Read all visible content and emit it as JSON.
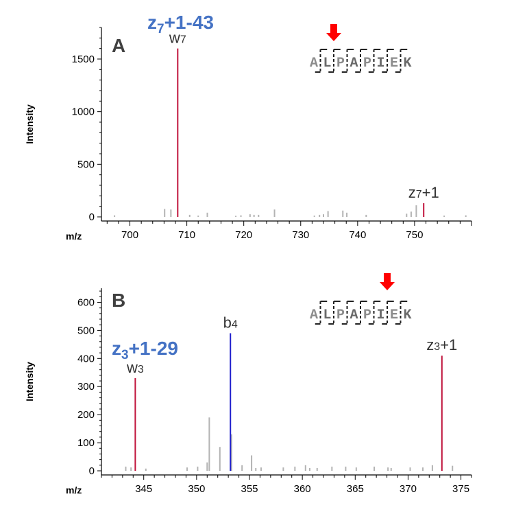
{
  "chart_data": [
    {
      "type": "bar",
      "panel": "A",
      "xlabel": "m/z",
      "ylabel": "Intensity",
      "xlim": [
        695,
        760
      ],
      "ylim": [
        0,
        1800
      ],
      "xticks": [
        700,
        710,
        720,
        730,
        740,
        750
      ],
      "yticks": [
        0,
        500,
        1000,
        1500
      ],
      "fragment_title": {
        "base": "z",
        "sub": "7",
        "rest": "+1-43"
      },
      "sequence": [
        "A",
        "L",
        "P",
        "A",
        "P",
        "I",
        "E",
        "K"
      ],
      "arrow_between": [
        1,
        2
      ],
      "labeled_peaks": [
        {
          "label": "w",
          "sub": "7",
          "mz": 708.4,
          "intensity": 1600,
          "color": "#c0143c"
        },
        {
          "label": "z",
          "sub": "7",
          "suffix": "+1",
          "mz": 751.6,
          "intensity": 130,
          "color": "#c0143c"
        }
      ],
      "noise_peaks": [
        {
          "mz": 697.3,
          "intensity": 15
        },
        {
          "mz": 706.1,
          "intensity": 75
        },
        {
          "mz": 707.2,
          "intensity": 70
        },
        {
          "mz": 710.5,
          "intensity": 20
        },
        {
          "mz": 712.0,
          "intensity": 12
        },
        {
          "mz": 713.6,
          "intensity": 40
        },
        {
          "mz": 718.6,
          "intensity": 10
        },
        {
          "mz": 719.5,
          "intensity": 15
        },
        {
          "mz": 721.1,
          "intensity": 25
        },
        {
          "mz": 721.8,
          "intensity": 20
        },
        {
          "mz": 722.6,
          "intensity": 20
        },
        {
          "mz": 725.4,
          "intensity": 70
        },
        {
          "mz": 732.4,
          "intensity": 12
        },
        {
          "mz": 733.3,
          "intensity": 20
        },
        {
          "mz": 734.0,
          "intensity": 25
        },
        {
          "mz": 734.8,
          "intensity": 55
        },
        {
          "mz": 737.4,
          "intensity": 60
        },
        {
          "mz": 738.1,
          "intensity": 40
        },
        {
          "mz": 741.5,
          "intensity": 20
        },
        {
          "mz": 748.6,
          "intensity": 30
        },
        {
          "mz": 749.4,
          "intensity": 50
        },
        {
          "mz": 750.3,
          "intensity": 110
        },
        {
          "mz": 755.2,
          "intensity": 12
        },
        {
          "mz": 759.0,
          "intensity": 15
        }
      ]
    },
    {
      "type": "bar",
      "panel": "B",
      "xlabel": "m/z",
      "ylabel": "Intensity",
      "xlim": [
        341,
        376
      ],
      "ylim": [
        0,
        650
      ],
      "xticks": [
        345,
        350,
        355,
        360,
        365,
        370,
        375
      ],
      "yticks": [
        0,
        100,
        200,
        300,
        400,
        500,
        600
      ],
      "fragment_title": {
        "base": "z",
        "sub": "3",
        "rest": "+1-29"
      },
      "sequence": [
        "A",
        "L",
        "P",
        "A",
        "P",
        "I",
        "E",
        "K"
      ],
      "arrow_between": [
        5,
        6
      ],
      "labeled_peaks": [
        {
          "label": "w",
          "sub": "3",
          "mz": 344.2,
          "intensity": 330,
          "color": "#c0143c"
        },
        {
          "label": "b",
          "sub": "4",
          "mz": 353.2,
          "intensity": 490,
          "color": "#1f1fcc"
        },
        {
          "label": "z",
          "sub": "3",
          "suffix": "+1",
          "mz": 373.2,
          "intensity": 410,
          "color": "#c0143c"
        }
      ],
      "noise_peaks": [
        {
          "mz": 343.3,
          "intensity": 15
        },
        {
          "mz": 343.8,
          "intensity": 12
        },
        {
          "mz": 345.2,
          "intensity": 8
        },
        {
          "mz": 349.1,
          "intensity": 12
        },
        {
          "mz": 350.1,
          "intensity": 15
        },
        {
          "mz": 351.0,
          "intensity": 30
        },
        {
          "mz": 351.2,
          "intensity": 190
        },
        {
          "mz": 352.2,
          "intensity": 85
        },
        {
          "mz": 353.3,
          "intensity": 130
        },
        {
          "mz": 354.3,
          "intensity": 20
        },
        {
          "mz": 355.2,
          "intensity": 55
        },
        {
          "mz": 355.6,
          "intensity": 10
        },
        {
          "mz": 356.1,
          "intensity": 12
        },
        {
          "mz": 358.2,
          "intensity": 12
        },
        {
          "mz": 359.3,
          "intensity": 15
        },
        {
          "mz": 360.3,
          "intensity": 20
        },
        {
          "mz": 360.7,
          "intensity": 10
        },
        {
          "mz": 361.4,
          "intensity": 10
        },
        {
          "mz": 362.8,
          "intensity": 15
        },
        {
          "mz": 364.1,
          "intensity": 15
        },
        {
          "mz": 365.1,
          "intensity": 12
        },
        {
          "mz": 366.8,
          "intensity": 15
        },
        {
          "mz": 368.1,
          "intensity": 12
        },
        {
          "mz": 368.4,
          "intensity": 10
        },
        {
          "mz": 370.2,
          "intensity": 12
        },
        {
          "mz": 371.4,
          "intensity": 12
        },
        {
          "mz": 372.3,
          "intensity": 20
        },
        {
          "mz": 374.2,
          "intensity": 18
        }
      ]
    }
  ]
}
